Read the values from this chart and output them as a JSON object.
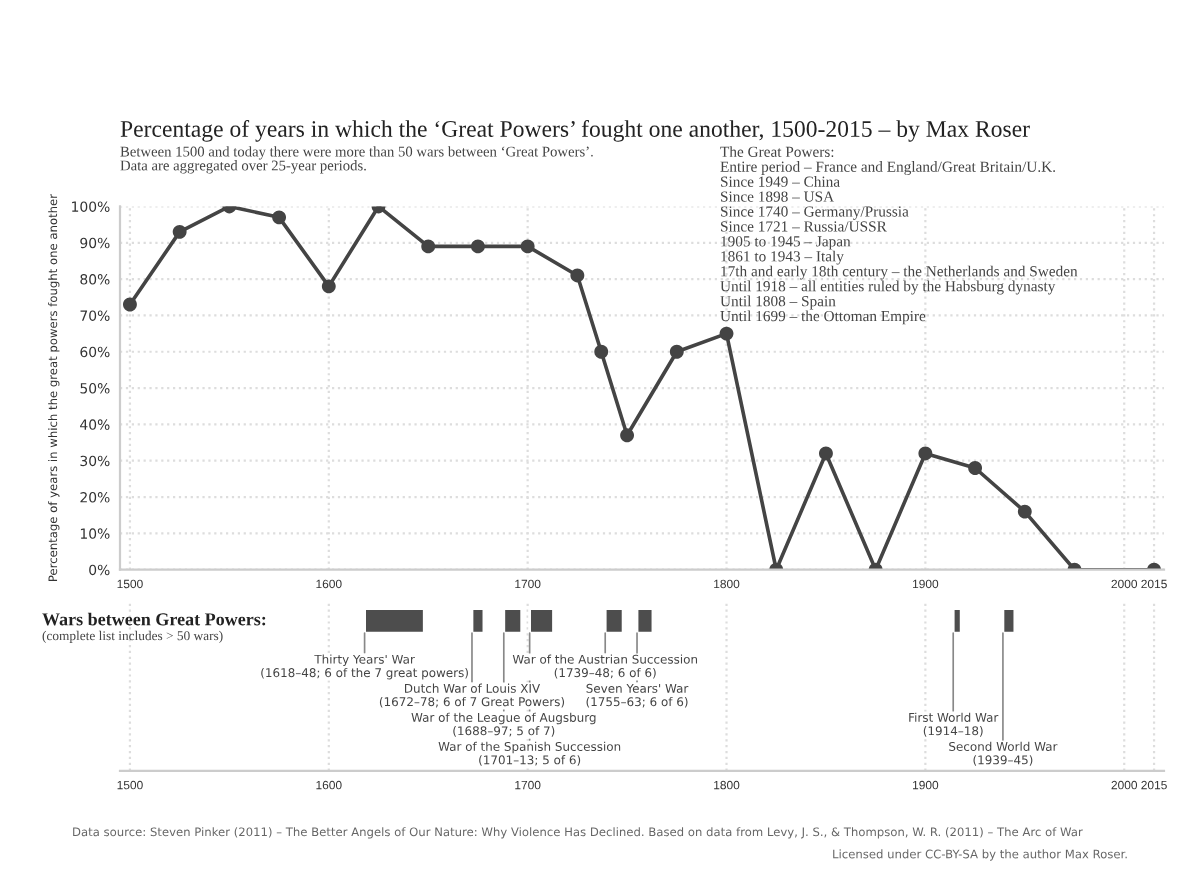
{
  "chart_data": [
    {
      "type": "line",
      "title": "Percentage of years in which the ‘Great Powers’ fought one another, 1500-2015 – by Max Roser",
      "subtitle": "Between 1500 and today there were more than 50 wars between ‘Great Powers’.\nData are aggregated over 25-year periods.",
      "ylabel": "Percentage of years in which the great powers fought one another",
      "annotations": [
        "The Great Powers:\nEntire period – France and England/Great Britain/U.K.\nSince 1949 – China\nSince 1898 – USA\nSince 1740 – Germany/Prussia\nSince 1721 – Russia/USSR\n1905 to 1945 – Japan\n1861 to 1943 – Italy\n17th and early 18th century – the Netherlands and Sweden\nUntil 1918 – all entities ruled by the Habsburg dynasty\nUntil 1808 – Spain\nUntil 1699 – the Ottoman Empire"
      ],
      "x": [
        1500,
        1525,
        1550,
        1575,
        1600,
        1625,
        1650,
        1675,
        1700,
        1725,
        1737,
        1750,
        1775,
        1800,
        1825,
        1850,
        1875,
        1900,
        1925,
        1950,
        1975,
        2015
      ],
      "series": [
        {
          "color": "#444444",
          "values": [
            73,
            93,
            100,
            97,
            78,
            100,
            89,
            89,
            89,
            81,
            60,
            37,
            60,
            65,
            0,
            32,
            0,
            32,
            28,
            16,
            0,
            0
          ]
        }
      ],
      "xlim": [
        1495,
        2020
      ],
      "xticks": [
        1500,
        1600,
        1700,
        1800,
        1900,
        2000,
        2015
      ],
      "ylim": [
        0,
        100
      ],
      "yticks": [
        {
          "value": 0,
          "label": "0%"
        },
        {
          "value": 10,
          "label": "10%"
        },
        {
          "value": 20,
          "label": "20%"
        },
        {
          "value": 30,
          "label": "30%"
        },
        {
          "value": 40,
          "label": "40%"
        },
        {
          "value": 50,
          "label": "50%"
        },
        {
          "value": 60,
          "label": "60%"
        },
        {
          "value": 70,
          "label": "70%"
        },
        {
          "value": 80,
          "label": "80%"
        },
        {
          "value": 90,
          "label": "90%"
        },
        {
          "value": 100,
          "label": "100%"
        }
      ],
      "grid": true,
      "marker": "circle",
      "line_style": "solid"
    },
    {
      "type": "bar",
      "orientation": "horizontal",
      "categories": [
        null
      ],
      "title": "Wars between Great Powers:",
      "subtitle": "(complete list includes > 50 wars)",
      "series": [
        {
          "name": "Thirty Years' War\n(1618–48; 6 of the 7 great powers)",
          "color": "#4d4d4d",
          "values": [
            30
          ],
          "base": [
            1618
          ]
        },
        {
          "name": "Dutch War of Louis XIV\n(1672–78; 6 of 7 Great Powers)",
          "color": "#4d4d4d",
          "values": [
            6
          ],
          "base": [
            1672
          ]
        },
        {
          "name": "War of the League of Augsburg\n(1688–97; 5 of 7)",
          "color": "#4d4d4d",
          "values": [
            9
          ],
          "base": [
            1688
          ]
        },
        {
          "name": "War of the Spanish Succession\n(1701–13; 5 of 6)",
          "color": "#4d4d4d",
          "values": [
            12
          ],
          "base": [
            1701
          ]
        },
        {
          "name": "War of the Austrian Succession\n(1739–48; 6 of 6)",
          "color": "#4d4d4d",
          "values": [
            9
          ],
          "base": [
            1739
          ]
        },
        {
          "name": "Seven Years' War\n(1755–63; 6 of 6)",
          "color": "#4d4d4d",
          "values": [
            8
          ],
          "base": [
            1755
          ]
        },
        {
          "name": "First World War\n(1914–18)",
          "color": "#4d4d4d",
          "values": [
            4
          ],
          "base": [
            1914
          ]
        },
        {
          "name": "Second World War\n(1939–45)",
          "color": "#4d4d4d",
          "values": [
            6
          ],
          "base": [
            1939
          ]
        }
      ],
      "xlim": [
        1495,
        2020
      ],
      "xticks": [
        1500,
        1600,
        1700,
        1800,
        1900,
        2000,
        2015
      ],
      "grid": "x",
      "tick_labels": "x",
      "annotations": [
        "Data source: Steven Pinker (2011) – The Better Angels of Our Nature: Why Violence Has Declined. Based on data from Levy, J. S., & Thompson, W. R. (2011) – The Arc of War",
        "Licensed under CC-BY-SA by the author Max Roser."
      ]
    }
  ]
}
